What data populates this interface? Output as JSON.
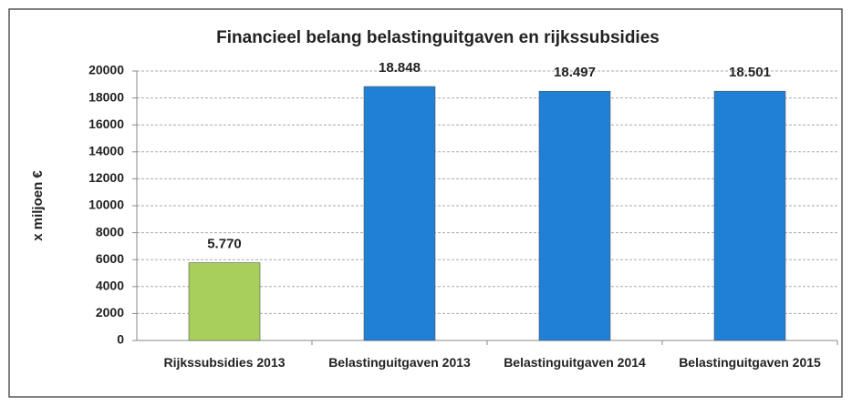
{
  "chart_data": {
    "type": "bar",
    "title": "Financieel belang belastinguitgaven en rijkssubsidies",
    "y_label": "x miljoen €",
    "categories": [
      "Rijkssubsidies 2013",
      "Belastinguitgaven 2013",
      "Belastinguitgaven 2014",
      "Belastinguitgaven 2015"
    ],
    "values": [
      5770,
      18848,
      18497,
      18501
    ],
    "value_labels": [
      "5.770",
      "18.848",
      "18.497",
      "18.501"
    ],
    "colors": [
      "#a8cf5c",
      "#1f80d6",
      "#1f80d6",
      "#1f80d6"
    ],
    "ylim": [
      0,
      20000
    ],
    "yticks": [
      0,
      2000,
      4000,
      6000,
      8000,
      10000,
      12000,
      14000,
      16000,
      18000,
      20000
    ],
    "grid": true
  }
}
